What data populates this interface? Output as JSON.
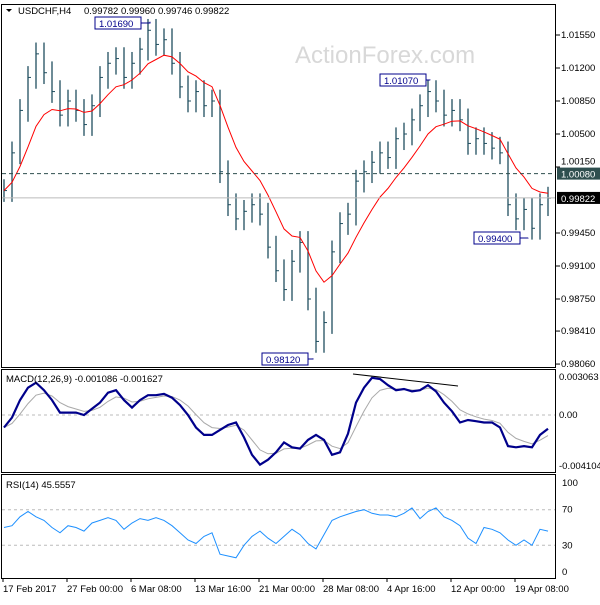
{
  "header": {
    "symbol": "USDCHF,H4",
    "ohlc": "0.99782 0.99960 0.99746 0.99822"
  },
  "watermark": "ActionForex.com",
  "colors": {
    "bars": "#1f4e5f",
    "ma": "#ff0000",
    "macd": "#00008b",
    "signal": "#a9a9a9",
    "rsi": "#1e90ff",
    "annotation": "#00008b"
  },
  "chart_data": [
    {
      "type": "bar",
      "title": "USDCHF,H4",
      "ylim": [
        0.9806,
        1.018
      ],
      "yticks": [
        "1.01550",
        "1.01200",
        "1.00850",
        "1.00500",
        "1.00150",
        "0.99450",
        "0.99100",
        "0.98750",
        "0.98410",
        "0.98060"
      ],
      "xticks": [
        "17 Feb 2017",
        "27 Feb 00:00",
        "6 Mar 08:00",
        "13 Mar 16:00",
        "21 Mar 00:00",
        "28 Mar 08:00",
        "4 Apr 16:00",
        "12 Apr 00:00",
        "19 Apr 08:00"
      ],
      "close": [
        0.999,
        1.003,
        1.0075,
        1.011,
        1.0135,
        1.0115,
        1.0095,
        1.007,
        1.0085,
        1.0075,
        1.006,
        1.008,
        1.011,
        1.0125,
        1.013,
        1.011,
        1.0125,
        1.014,
        1.016,
        1.0145,
        1.015,
        1.0125,
        1.01,
        1.0085,
        1.0095,
        1.008,
        1.0085,
        1.001,
        0.9975,
        0.996,
        0.9968,
        0.9975,
        0.9965,
        0.993,
        0.9905,
        0.9885,
        0.9915,
        0.9935,
        0.9875,
        0.983,
        0.985,
        0.9925,
        0.9955,
        0.9965,
        1.0,
        1.001,
        1.002,
        1.003,
        1.0025,
        1.0045,
        1.005,
        1.0065,
        1.008,
        1.0095,
        1.0085,
        1.007,
        1.0075,
        1.0065,
        1.004,
        1.0045,
        1.004,
        1.0035,
        1.003,
        0.9975,
        0.996,
        0.997,
        0.995,
        0.9975,
        0.9982
      ],
      "annotations": [
        {
          "label": "1.01690",
          "value": 1.0169
        },
        {
          "label": "1.01070",
          "value": 1.0107
        },
        {
          "label": "0.98120",
          "value": 0.9812
        },
        {
          "label": "0.99400",
          "value": 0.994
        }
      ],
      "level_line": {
        "label": "1.00080",
        "value": 1.0008
      },
      "last_price": {
        "label": "0.99822",
        "value": 0.99822
      }
    },
    {
      "type": "line",
      "title": "MACD(12,26,9) -0.001086 -0.001627",
      "ylim": [
        -0.004104,
        0.003063
      ],
      "yticks": [
        "0.003063",
        "0.00",
        "-0.004104"
      ],
      "macd": [
        -0.001,
        -0.0002,
        0.0012,
        0.0022,
        0.0026,
        0.002,
        0.0012,
        0.0002,
        0.0002,
        0.0002,
        0.0,
        0.0005,
        0.001,
        0.0018,
        0.002,
        0.0012,
        0.0006,
        0.0012,
        0.0016,
        0.0016,
        0.0017,
        0.0014,
        0.0008,
        0.0,
        -0.001,
        -0.0016,
        -0.0016,
        -0.0012,
        -0.0008,
        -0.0006,
        -0.0018,
        -0.0032,
        -0.004,
        -0.0036,
        -0.003,
        -0.0022,
        -0.0026,
        -0.0027,
        -0.002,
        -0.0016,
        -0.002,
        -0.0032,
        -0.003,
        -0.0015,
        0.001,
        0.0022,
        0.003,
        0.0029,
        0.0024,
        0.002,
        0.0021,
        0.0019,
        0.002,
        0.0024,
        0.0019,
        0.001,
        0.0003,
        -0.0006,
        -0.0004,
        -0.0005,
        -0.0006,
        -0.0006,
        -0.001,
        -0.0025,
        -0.0026,
        -0.0025,
        -0.0026,
        -0.0016,
        -0.0011
      ]
    },
    {
      "type": "line",
      "title": "RSI(14) 45.5557",
      "ylim": [
        0,
        100
      ],
      "yticks": [
        "100",
        "70",
        "30",
        "0"
      ],
      "levels": [
        70,
        30
      ],
      "rsi": [
        50,
        52,
        62,
        68,
        62,
        58,
        50,
        44,
        52,
        50,
        46,
        55,
        58,
        61,
        58,
        48,
        55,
        60,
        58,
        61,
        58,
        52,
        44,
        36,
        32,
        40,
        44,
        20,
        18,
        16,
        30,
        40,
        46,
        38,
        32,
        40,
        48,
        42,
        32,
        26,
        42,
        58,
        62,
        65,
        68,
        70,
        66,
        64,
        64,
        62,
        66,
        72,
        60,
        68,
        72,
        62,
        58,
        52,
        38,
        32,
        50,
        48,
        44,
        36,
        30,
        36,
        30,
        48,
        46
      ]
    }
  ]
}
